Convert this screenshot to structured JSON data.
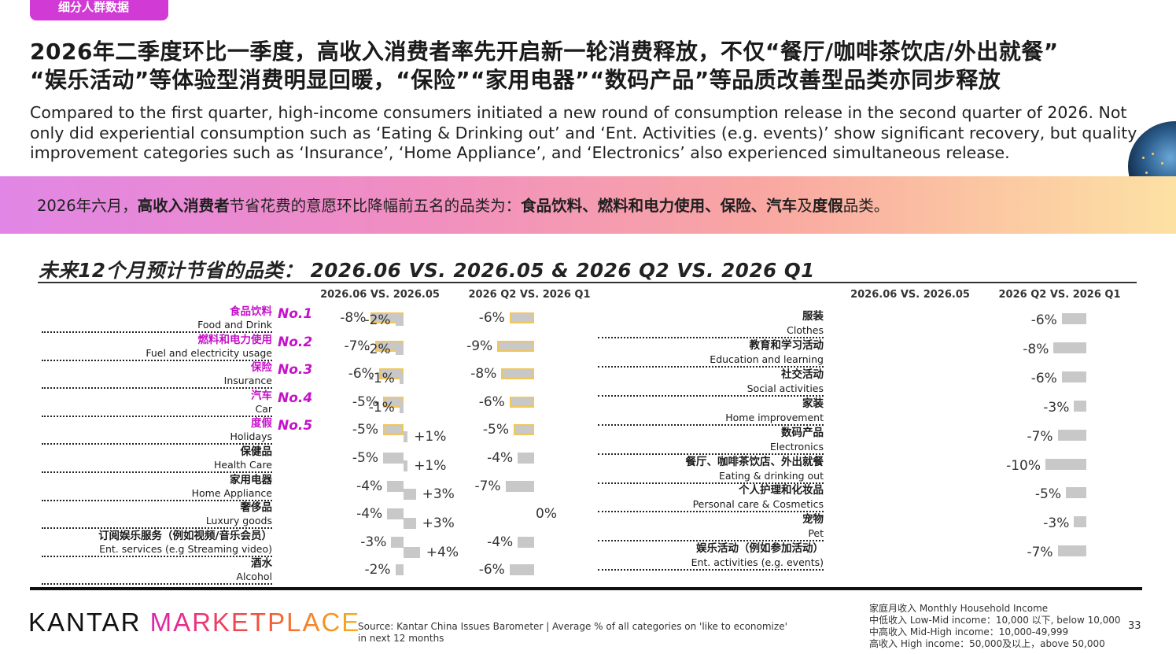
{
  "tag": "细分人群数据",
  "headline": {
    "zh_line1": "2026年二季度环比一季度，高收入消费者率先开启新一轮消费释放，不仅“餐厅/咖啡茶饮店/外出就餐”",
    "zh_line2": "“娱乐活动”等体验型消费明显回暖，“保险”“家用电器”“数码产品”等品质改善型品类亦同步释放",
    "en": "Compared to the first quarter, high-income consumers initiated a new round of consumption release in the second quarter of 2026. Not only did experiential consumption such as ‘Eating & Drinking out’ and ‘Ent. Activities (e.g. events)’ show significant recovery, but quality improvement categories such as ‘Insurance’, ‘Home Appliance’, and ‘Electronics’ also experienced simultaneous release."
  },
  "banner": {
    "p1": "2026年六月，",
    "p2": "高收入消费者",
    "p3": "节省花费的意愿环比降幅前五名的品类为：",
    "p4": "食品饮料、燃料和电力使用、保险、汽车",
    "p5": "及",
    "p6": "度假",
    "p7": "品类。"
  },
  "chart_title": "未来12个月预计节省的品类：  2026.06 VS. 2026.05  &  2026 Q2 VS. 2026 Q1",
  "column_headers": {
    "mom": "2026.06 VS. 2026.05",
    "qoq": "2026 Q2 VS. 2026 Q1"
  },
  "chart_data": {
    "type": "bar",
    "unit": "%",
    "series_names": [
      "2026.06 VS. 2026.05",
      "2026 Q2 VS. 2026 Q1"
    ],
    "left": [
      {
        "zh": "食品饮料",
        "en": "Food and Drink",
        "rank": "No.1",
        "mom": -8,
        "qoq": -6,
        "mom_label": "-8%",
        "qoq_label": "-6%"
      },
      {
        "zh": "燃料和电力使用",
        "en": "Fuel and electricity usage",
        "rank": "No.2",
        "mom": -7,
        "qoq": -9,
        "mom_label": "-7%",
        "qoq_label": "-9%"
      },
      {
        "zh": "保险",
        "en": "Insurance",
        "rank": "No.3",
        "mom": -6,
        "qoq": -8,
        "mom_label": "-6%",
        "qoq_label": "-8%"
      },
      {
        "zh": "汽车",
        "en": "Car",
        "rank": "No.4",
        "mom": -5,
        "qoq": -6,
        "mom_label": "-5%",
        "qoq_label": "-6%"
      },
      {
        "zh": "度假",
        "en": "Holidays",
        "rank": "No.5",
        "mom": -5,
        "qoq": -5,
        "mom_label": "-5%",
        "qoq_label": "-5%"
      },
      {
        "zh": "保健品",
        "en": "Health Care",
        "rank": "",
        "mom": -5,
        "qoq": -4,
        "mom_label": "-5%",
        "qoq_label": "-4%"
      },
      {
        "zh": "家用电器",
        "en": "Home Appliance",
        "rank": "",
        "mom": -4,
        "qoq": -7,
        "mom_label": "-4%",
        "qoq_label": "-7%"
      },
      {
        "zh": "奢侈品",
        "en": "Luxury goods",
        "rank": "",
        "mom": -4,
        "qoq": 0,
        "mom_label": "-4%",
        "qoq_label": "0%"
      },
      {
        "zh": "订阅娱乐服务（例如视频/音乐会员）",
        "en": "Ent. services (e.g Streaming video)",
        "rank": "",
        "mom": -3,
        "qoq": -4,
        "mom_label": "-3%",
        "qoq_label": "-4%"
      },
      {
        "zh": "酒水",
        "en": "Alcohol",
        "rank": "",
        "mom": -2,
        "qoq": -6,
        "mom_label": "-2%",
        "qoq_label": "-6%"
      }
    ],
    "right": [
      {
        "zh": "服装",
        "en": "Clothes",
        "mom": -2,
        "qoq": -6,
        "mom_label": "-2%",
        "qoq_label": "-6%"
      },
      {
        "zh": "教育和学习活动",
        "en": "Education and learning",
        "mom": -2,
        "qoq": -8,
        "mom_label": "-2%",
        "qoq_label": "-8%"
      },
      {
        "zh": "社交活动",
        "en": "Social activities",
        "mom": -1,
        "qoq": -6,
        "mom_label": "-1%",
        "qoq_label": "-6%"
      },
      {
        "zh": "家装",
        "en": "Home improvement",
        "mom": -1,
        "qoq": -3,
        "mom_label": "-1%",
        "qoq_label": "-3%"
      },
      {
        "zh": "数码产品",
        "en": "Electronics",
        "mom": 1,
        "qoq": -7,
        "mom_label": "+1%",
        "qoq_label": "-7%"
      },
      {
        "zh": "餐厅、咖啡茶饮店、外出就餐",
        "en": "Eating & drinking out",
        "mom": 1,
        "qoq": -10,
        "mom_label": "+1%",
        "qoq_label": "-10%"
      },
      {
        "zh": "个人护理和化妆品",
        "en": "Personal care & Cosmetics",
        "mom": 3,
        "qoq": -5,
        "mom_label": "+3%",
        "qoq_label": "-5%"
      },
      {
        "zh": "宠物",
        "en": "Pet",
        "mom": 3,
        "qoq": -3,
        "mom_label": "+3%",
        "qoq_label": "-3%"
      },
      {
        "zh": "娱乐活动（例如参加活动）",
        "en": "Ent. activities (e.g. events)",
        "mom": 4,
        "qoq": -7,
        "mom_label": "+4%",
        "qoq_label": "-7%"
      }
    ]
  },
  "footer": {
    "logo_k": "KANTAR",
    "logo_m": "MARKETPLACE",
    "source_line1": "Source:  Kantar China Issues Barometer | Average % of all categories on 'like to economize'",
    "source_line2": "in next 12 months",
    "notes": [
      "家庭月收入 Monthly Household Income",
      "中低收入 Low-Mid income：10,000 以下, below 10,000",
      "中高收入 Mid-High income：10,000-49,999",
      "高收入 High income：50,000及以上，above 50,000"
    ],
    "page": "33"
  },
  "colors": {
    "accent": "#c512c9",
    "tag_bg": "#d23ad6",
    "bar": "#c8c8c8",
    "bar_outline": "#f2c65a"
  }
}
